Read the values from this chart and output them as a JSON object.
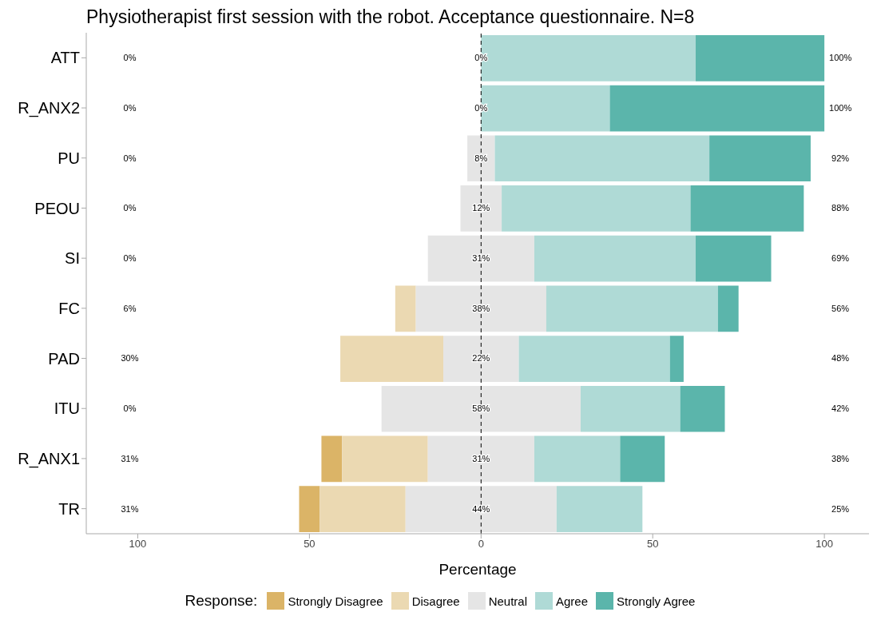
{
  "chart_data": {
    "type": "bar",
    "title": "Physiotherapist first session with the robot. Acceptance questionnaire. N=8",
    "xlabel": "Percentage",
    "legend_title": "Response:",
    "orientation": "horizontal",
    "categories": [
      "ATT",
      "R_ANX2",
      "PU",
      "PEOU",
      "SI",
      "FC",
      "PAD",
      "ITU",
      "R_ANX1",
      "TR"
    ],
    "series": [
      {
        "name": "Strongly Disagree",
        "color": "#dbb467",
        "values": [
          0,
          0,
          0,
          0,
          0,
          0,
          0,
          0,
          6,
          6
        ],
        "base": [
          null,
          null,
          null,
          null,
          null,
          null,
          null,
          null,
          -46.5,
          -53
        ]
      },
      {
        "name": "Disagree",
        "color": "#ebd9b2",
        "values": [
          0,
          0,
          0,
          0,
          0,
          6,
          30,
          0,
          25,
          25
        ],
        "base": [
          null,
          null,
          null,
          null,
          null,
          -25,
          -41,
          null,
          -40.5,
          -47
        ]
      },
      {
        "name": "Neutral",
        "color": "#e5e5e5",
        "values": [
          0,
          0,
          8,
          12,
          31,
          38,
          22,
          58,
          31,
          44
        ],
        "base": [
          null,
          null,
          -4,
          -6,
          -15.5,
          -19,
          -11,
          -29,
          -15.5,
          -22
        ],
        "value_labels": [
          "0%",
          "0%",
          "8%",
          "12%",
          "31%",
          "38%",
          "22%",
          "58%",
          "31%",
          "44%"
        ]
      },
      {
        "name": "Agree",
        "color": "#afdad6",
        "values": [
          62.5,
          37.5,
          62.5,
          55,
          47,
          50,
          44,
          29,
          25,
          25
        ],
        "base": [
          0,
          0,
          4,
          6,
          15.5,
          19,
          11,
          29,
          15.5,
          22
        ]
      },
      {
        "name": "Strongly Agree",
        "color": "#5bb5ab",
        "values": [
          37.5,
          62.5,
          29.5,
          33,
          22,
          6,
          4,
          13,
          13,
          0
        ],
        "base": [
          62.5,
          37.5,
          66.5,
          61,
          62.5,
          69,
          55,
          58,
          40.5,
          null
        ]
      }
    ],
    "annotations": [
      "0%",
      "0%",
      "0%",
      "0%",
      "0%",
      "6%",
      "30%",
      "0%",
      "31%",
      "31%",
      "100%",
      "100%",
      "92%",
      "88%",
      "69%",
      "56%",
      "48%",
      "42%",
      "38%",
      "25%"
    ],
    "xlim": [
      -115,
      113
    ],
    "xticks": [
      {
        "value": -100,
        "label": "100"
      },
      {
        "value": -50,
        "label": "50"
      },
      0,
      50,
      100
    ],
    "ref_lines": [
      {
        "axis": "x",
        "value": 0,
        "color": "#000000",
        "line_style": "dashed"
      }
    ],
    "grid": false,
    "legend": "bottom"
  }
}
